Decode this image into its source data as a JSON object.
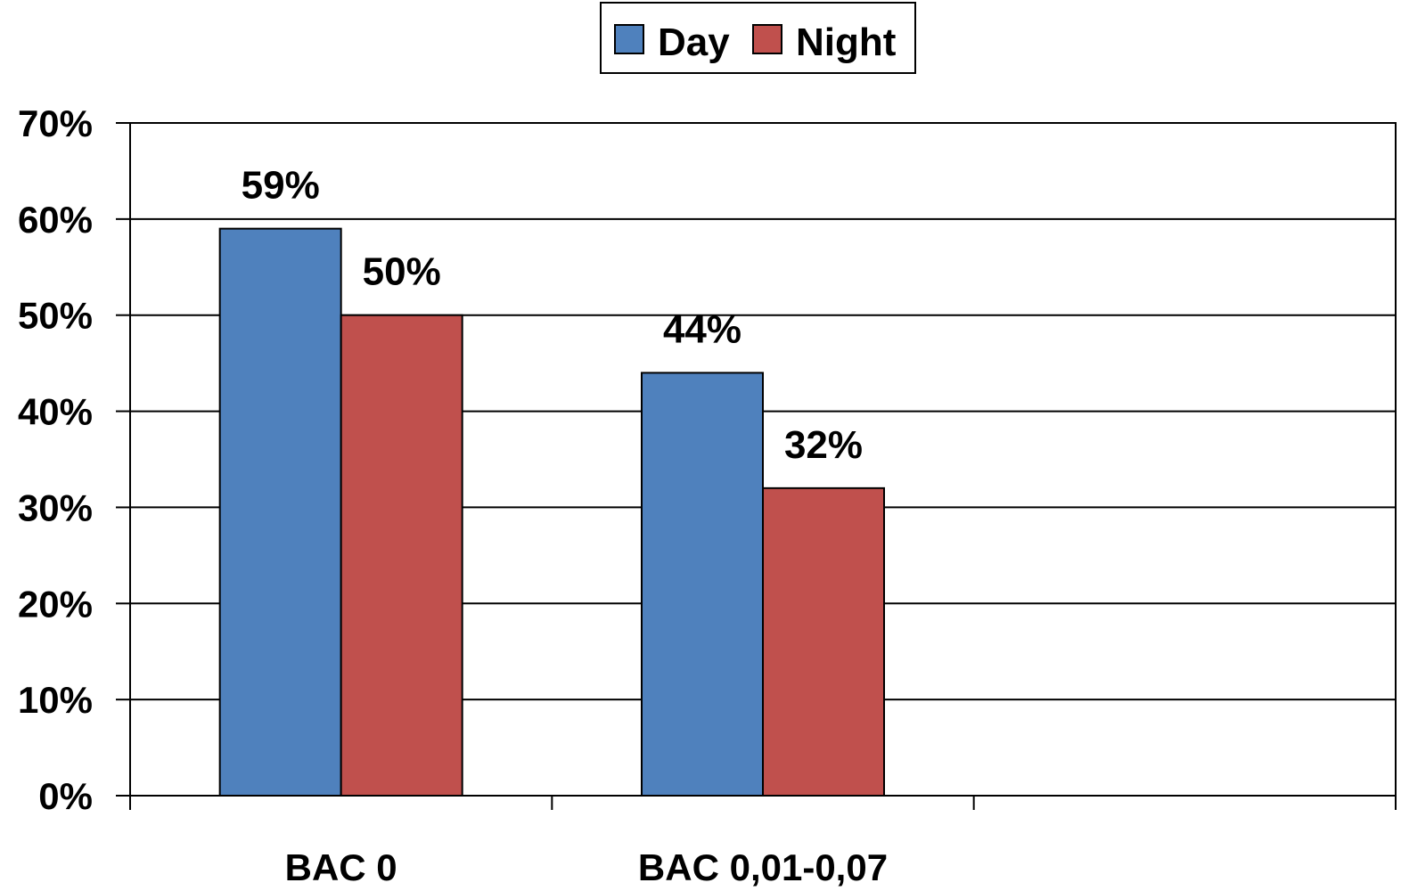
{
  "chart_data": {
    "type": "bar",
    "title": "",
    "xlabel": "",
    "ylabel": "",
    "categories": [
      "BAC 0",
      "BAC 0,01-0,07",
      ""
    ],
    "series": [
      {
        "name": "Day",
        "color": "#4F81BD",
        "values": [
          0.59,
          0.44,
          null
        ],
        "labels": [
          "59%",
          "44%",
          ""
        ]
      },
      {
        "name": "Night",
        "color": "#C0504D",
        "values": [
          0.5,
          0.32,
          null
        ],
        "labels": [
          "50%",
          "32%",
          ""
        ]
      }
    ],
    "ylim": [
      0,
      0.7
    ],
    "yticks": [
      0,
      0.1,
      0.2,
      0.3,
      0.4,
      0.5,
      0.6,
      0.7
    ],
    "ytick_labels": [
      "0%",
      "10%",
      "20%",
      "30%",
      "40%",
      "50%",
      "60%",
      "70%"
    ],
    "grid": true,
    "legend_position": "top-center"
  }
}
